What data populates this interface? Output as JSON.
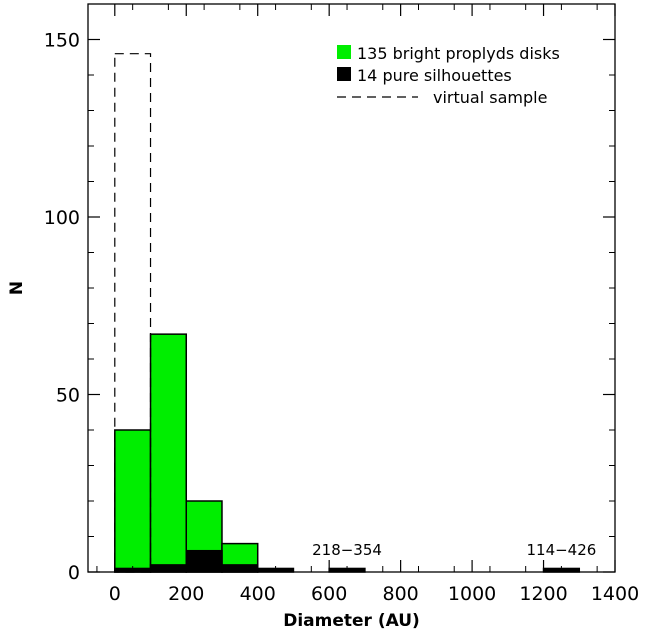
{
  "chart_data": {
    "type": "bar",
    "xlabel": "Diameter (AU)",
    "ylabel": "N",
    "xlim": [
      -75,
      1400
    ],
    "ylim": [
      0,
      160
    ],
    "x_ticks": [
      0,
      200,
      400,
      600,
      800,
      1000,
      1200,
      1400
    ],
    "y_ticks": [
      0,
      50,
      100,
      150
    ],
    "bin_width": 100,
    "bin_starts": [
      0,
      100,
      200,
      300,
      400,
      500,
      600,
      700,
      800,
      900,
      1000,
      1100,
      1200
    ],
    "series": [
      {
        "name": "135 bright proplyds disks",
        "style": "filled",
        "color": "#00ee00",
        "values": [
          40,
          67,
          20,
          8,
          0,
          0,
          0,
          0,
          0,
          0,
          0,
          0,
          0
        ]
      },
      {
        "name": "14 pure silhouettes",
        "style": "filled",
        "color": "#000000",
        "values": [
          1,
          2,
          6,
          2,
          1,
          0,
          1,
          0,
          0,
          0,
          0,
          0,
          1
        ]
      },
      {
        "name": "virtual sample",
        "style": "dashed",
        "color": "#000000",
        "values": [
          146,
          0,
          0,
          0,
          0,
          0,
          0,
          0,
          0,
          0,
          0,
          0,
          0
        ]
      }
    ],
    "annotations": [
      {
        "text": "218−354",
        "x": 650,
        "y": 4
      },
      {
        "text": "114−426",
        "x": 1250,
        "y": 4
      }
    ],
    "legend_position": "top-right",
    "grid": false
  }
}
